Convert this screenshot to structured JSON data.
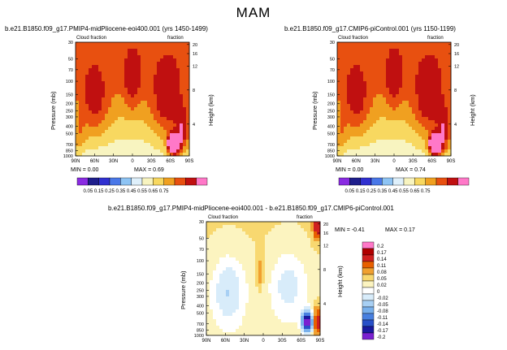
{
  "page_title": "MAM",
  "chart_data": [
    {
      "type": "heatmap",
      "title": "b.e21.B1850.f09_g17.PMIP4-midPliocene-eoi400.001  (yrs 1450-1499)",
      "left_label": "Cloud fraction",
      "right_label": "fraction",
      "xlabel": "",
      "ylabel": "Pressure  (mb)",
      "y2label": "Height  (km)",
      "x_ticks": [
        "90N",
        "60N",
        "30N",
        "0",
        "30S",
        "60S",
        "90S"
      ],
      "y_ticks": [
        "30",
        "50",
        "70",
        "100",
        "150",
        "200",
        "250",
        "300",
        "400",
        "500",
        "700",
        "850",
        "1000"
      ],
      "y2_ticks": [
        "20",
        "16",
        "12",
        "8",
        "4"
      ],
      "min_label": "MIN =   0.00",
      "max_label": "MAX =   0.69",
      "min": 0.0,
      "max": 0.69,
      "colorbar": [
        "0.05",
        "0.15",
        "0.25",
        "0.35",
        "0.45",
        "0.55",
        "0.65",
        "0.75"
      ]
    },
    {
      "type": "heatmap",
      "title": "b.e21.B1850.f09_g17.CMIP6-piControl.001  (yrs 1150-1199)",
      "left_label": "Cloud fraction",
      "right_label": "fraction",
      "xlabel": "",
      "ylabel": "Pressure  (mb)",
      "y2label": "Height  (km)",
      "x_ticks": [
        "90N",
        "60N",
        "30N",
        "0",
        "30S",
        "60S",
        "90S"
      ],
      "y_ticks": [
        "30",
        "50",
        "70",
        "100",
        "150",
        "200",
        "250",
        "300",
        "400",
        "500",
        "700",
        "850",
        "1000"
      ],
      "y2_ticks": [
        "20",
        "16",
        "12",
        "8",
        "4"
      ],
      "min_label": "MIN =   0.00",
      "max_label": "MAX =   0.74",
      "min": 0.0,
      "max": 0.74,
      "colorbar": [
        "0.05",
        "0.15",
        "0.25",
        "0.35",
        "0.45",
        "0.55",
        "0.65",
        "0.75"
      ]
    },
    {
      "type": "heatmap",
      "title": "b.e21.B1850.f09_g17.PMIP4-midPliocene-eoi400.001  -  b.e21.B1850.f09_g17.CMIP6-piControl.001",
      "left_label": "Cloud fraction",
      "right_label": "fraction",
      "xlabel": "",
      "ylabel": "Pressure  (mb)",
      "y2label": "Height  (km)",
      "x_ticks": [
        "90N",
        "60N",
        "30N",
        "0",
        "30S",
        "60S",
        "90S"
      ],
      "y_ticks": [
        "30",
        "50",
        "70",
        "100",
        "150",
        "200",
        "250",
        "300",
        "400",
        "500",
        "700",
        "850",
        "1000"
      ],
      "y2_ticks": [
        "20",
        "16",
        "12",
        "8",
        "4"
      ],
      "min_label": "MIN =  -0.41",
      "max_label": "MAX =   0.17",
      "min": -0.41,
      "max": 0.17,
      "colorbar": [
        "0.2",
        "0.17",
        "0.14",
        "0.11",
        "0.08",
        "0.05",
        "0.02",
        "0",
        "-0.02",
        "-0.05",
        "-0.08",
        "-0.11",
        "-0.14",
        "-0.17",
        "-0.2"
      ]
    }
  ],
  "colors": {
    "seq": [
      "#8a2be2",
      "#1e1e8c",
      "#3030d0",
      "#4a78e8",
      "#8ec4f4",
      "#dff0fb",
      "#f8f4c0",
      "#f8d860",
      "#f0a020",
      "#e85010",
      "#c01010",
      "#ff78c8"
    ],
    "div": [
      "#ff78c8",
      "#b00000",
      "#d02020",
      "#e86000",
      "#f0a030",
      "#f8d870",
      "#fcf4c0",
      "#ffffff",
      "#d8ecfa",
      "#a8d0f4",
      "#78b0ec",
      "#4880e0",
      "#2850c8",
      "#1a1aa0",
      "#7a20d0"
    ]
  }
}
